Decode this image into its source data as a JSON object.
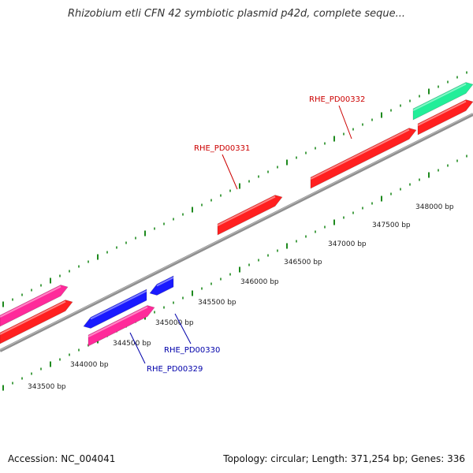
{
  "title": "Rhizobium etli CFN 42 symbiotic plasmid p42d, complete seque...",
  "footer": {
    "accession": "Accession: NC_004041",
    "summary": "Topology: circular; Length: 371,254 bp; Genes: 336"
  },
  "colors": {
    "backbone": "#8f8f8f",
    "tick": "#1e8a1e",
    "forward_gene": "#ff2020",
    "reverse_gene": "#1a1aff",
    "pink_gene": "#ff2a9a",
    "teal_gene": "#22ee99",
    "label_red": "#cc0000",
    "label_blue": "#0000aa"
  },
  "scale_labels": [
    "343500 bp",
    "344000 bp",
    "344500 bp",
    "345000 bp",
    "345500 bp",
    "346000 bp",
    "346500 bp",
    "347000 bp",
    "347500 bp",
    "348000 bp"
  ],
  "gene_labels": [
    {
      "name": "RHE_PD00332",
      "color": "label_red"
    },
    {
      "name": "RHE_PD00331",
      "color": "label_red"
    },
    {
      "name": "RHE_PD00330",
      "color": "label_blue"
    },
    {
      "name": "RHE_PD00329",
      "color": "label_blue"
    }
  ]
}
